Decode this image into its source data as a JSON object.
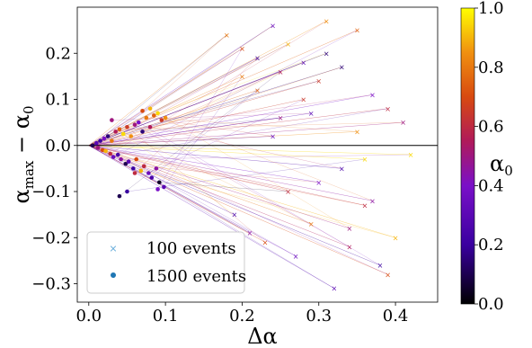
{
  "chart_data": {
    "type": "scatter",
    "title": "",
    "xlabel": "Δα",
    "ylabel_parts": {
      "base": "α",
      "sub_max": "max",
      "minus": " − ",
      "sub_zero": "0"
    },
    "colorbar_label_parts": {
      "base": "α",
      "sub": "0"
    },
    "xlim": [
      -0.015,
      0.455
    ],
    "ylim": [
      -0.34,
      0.3
    ],
    "x_ticks": [
      0.0,
      0.1,
      0.2,
      0.3,
      0.4
    ],
    "x_tick_labels": [
      "0.0",
      "0.1",
      "0.2",
      "0.3",
      "0.4"
    ],
    "y_ticks": [
      0.2,
      0.1,
      0.0,
      -0.1,
      -0.2,
      -0.3
    ],
    "y_tick_labels": [
      "0.2",
      "0.1",
      "0.0",
      "−0.1",
      "−0.2",
      "−0.3"
    ],
    "colorbar": {
      "colormap": "gnuplot",
      "range": [
        0.0,
        1.0
      ],
      "ticks": [
        0.0,
        0.2,
        0.4,
        0.6,
        0.8,
        1.0
      ],
      "tick_labels": [
        "0.0",
        "0.2",
        "0.4",
        "0.6",
        "0.8",
        "1.0"
      ]
    },
    "reference_line_y": 0.0,
    "legend": {
      "placement": "lower-left",
      "entries": [
        {
          "label": "100 events",
          "marker": "x",
          "color": "#5fa8d8"
        },
        {
          "label": "1500 events",
          "marker": "circle",
          "color": "#1f77b4"
        }
      ]
    },
    "series": [
      {
        "name": "100 events",
        "marker": "x",
        "x": [
          0.18,
          0.2,
          0.22,
          0.24,
          0.25,
          0.26,
          0.28,
          0.3,
          0.31,
          0.33,
          0.35,
          0.37,
          0.39,
          0.41,
          0.42,
          0.19,
          0.21,
          0.23,
          0.27,
          0.29,
          0.32,
          0.34,
          0.36,
          0.38,
          0.4,
          0.25,
          0.3,
          0.35,
          0.28,
          0.33,
          0.22,
          0.37,
          0.39,
          0.31,
          0.26,
          0.24,
          0.2,
          0.34,
          0.29,
          0.36
        ],
        "y": [
          0.24,
          0.21,
          0.19,
          0.26,
          0.16,
          0.22,
          0.18,
          0.14,
          0.27,
          0.17,
          0.25,
          0.11,
          0.08,
          0.05,
          -0.02,
          -0.15,
          -0.19,
          -0.21,
          -0.24,
          -0.17,
          -0.31,
          -0.22,
          -0.13,
          -0.26,
          -0.2,
          0.06,
          -0.08,
          0.03,
          0.1,
          -0.05,
          0.12,
          -0.12,
          -0.28,
          0.2,
          -0.1,
          0.02,
          0.15,
          -0.18,
          0.07,
          -0.03
        ],
        "alpha0": [
          0.8,
          0.7,
          0.2,
          0.35,
          0.55,
          0.9,
          0.3,
          0.65,
          0.85,
          0.15,
          0.75,
          0.4,
          0.6,
          0.5,
          0.95,
          0.25,
          0.45,
          0.7,
          0.35,
          0.8,
          0.3,
          0.55,
          0.6,
          0.2,
          0.9,
          0.5,
          0.4,
          0.85,
          0.65,
          0.25,
          0.75,
          0.45,
          0.7,
          0.15,
          0.6,
          0.35,
          0.8,
          0.5,
          0.3,
          0.95
        ]
      },
      {
        "name": "1500 events",
        "marker": "circle",
        "x": [
          0.005,
          0.01,
          0.012,
          0.015,
          0.018,
          0.02,
          0.022,
          0.025,
          0.028,
          0.03,
          0.032,
          0.035,
          0.038,
          0.04,
          0.042,
          0.045,
          0.048,
          0.05,
          0.052,
          0.055,
          0.058,
          0.06,
          0.062,
          0.065,
          0.068,
          0.07,
          0.072,
          0.075,
          0.078,
          0.08,
          0.082,
          0.085,
          0.088,
          0.09,
          0.092,
          0.095,
          0.098,
          0.1,
          0.03,
          0.05,
          0.07,
          0.09,
          0.06,
          0.08,
          0.04
        ],
        "y": [
          0.0,
          0.005,
          -0.005,
          0.01,
          -0.01,
          0.015,
          -0.012,
          0.02,
          -0.018,
          0.01,
          -0.025,
          0.03,
          -0.02,
          0.035,
          -0.03,
          0.025,
          -0.04,
          0.04,
          -0.035,
          0.02,
          -0.05,
          0.045,
          -0.03,
          0.05,
          -0.055,
          0.03,
          -0.045,
          0.06,
          -0.06,
          0.04,
          -0.07,
          0.065,
          -0.05,
          0.07,
          -0.08,
          0.055,
          -0.09,
          0.06,
          0.055,
          -0.1,
          0.075,
          -0.095,
          -0.06,
          0.08,
          -0.11
        ],
        "alpha0": [
          0.1,
          0.3,
          0.5,
          0.2,
          0.7,
          0.4,
          0.9,
          0.15,
          0.6,
          0.8,
          0.35,
          0.55,
          0.25,
          0.75,
          0.45,
          0.95,
          0.1,
          0.65,
          0.3,
          0.85,
          0.2,
          0.5,
          0.7,
          0.4,
          0.9,
          0.15,
          0.6,
          0.8,
          0.35,
          0.55,
          0.25,
          0.75,
          0.45,
          0.95,
          0.05,
          0.65,
          0.3,
          0.85,
          0.5,
          0.2,
          0.7,
          0.4,
          0.6,
          0.9,
          0.1
        ]
      }
    ],
    "trajectories_note_free": true
  }
}
